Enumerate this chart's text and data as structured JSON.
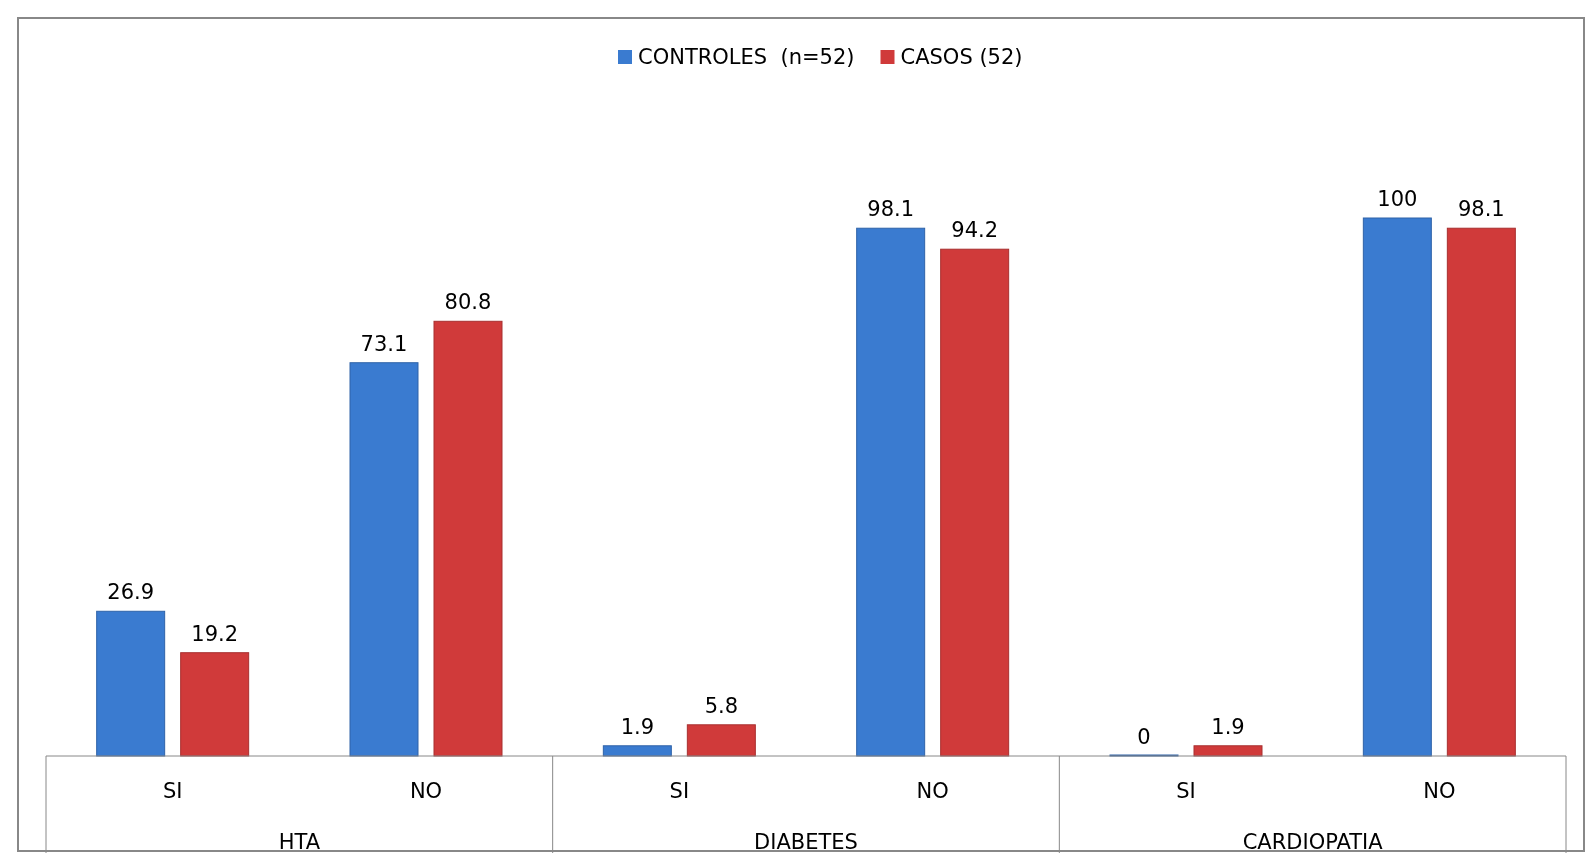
{
  "chart_data": {
    "type": "bar",
    "categories": [
      "SI",
      "NO",
      "SI",
      "NO",
      "SI",
      "NO"
    ],
    "series": [
      {
        "name": "CONTROLES  (n=52)",
        "color": "#3a7bd0",
        "values": [
          26.9,
          73.1,
          1.9,
          98.1,
          0,
          100
        ]
      },
      {
        "name": "CASOS (52)",
        "color": "#d03a3a",
        "values": [
          19.2,
          80.8,
          5.8,
          94.2,
          1.9,
          98.1
        ]
      }
    ],
    "annotations": [
      "HTA",
      "DIABETES",
      "CARDIOPATIA"
    ],
    "data_labels": true,
    "legend": "top",
    "grid": false
  }
}
